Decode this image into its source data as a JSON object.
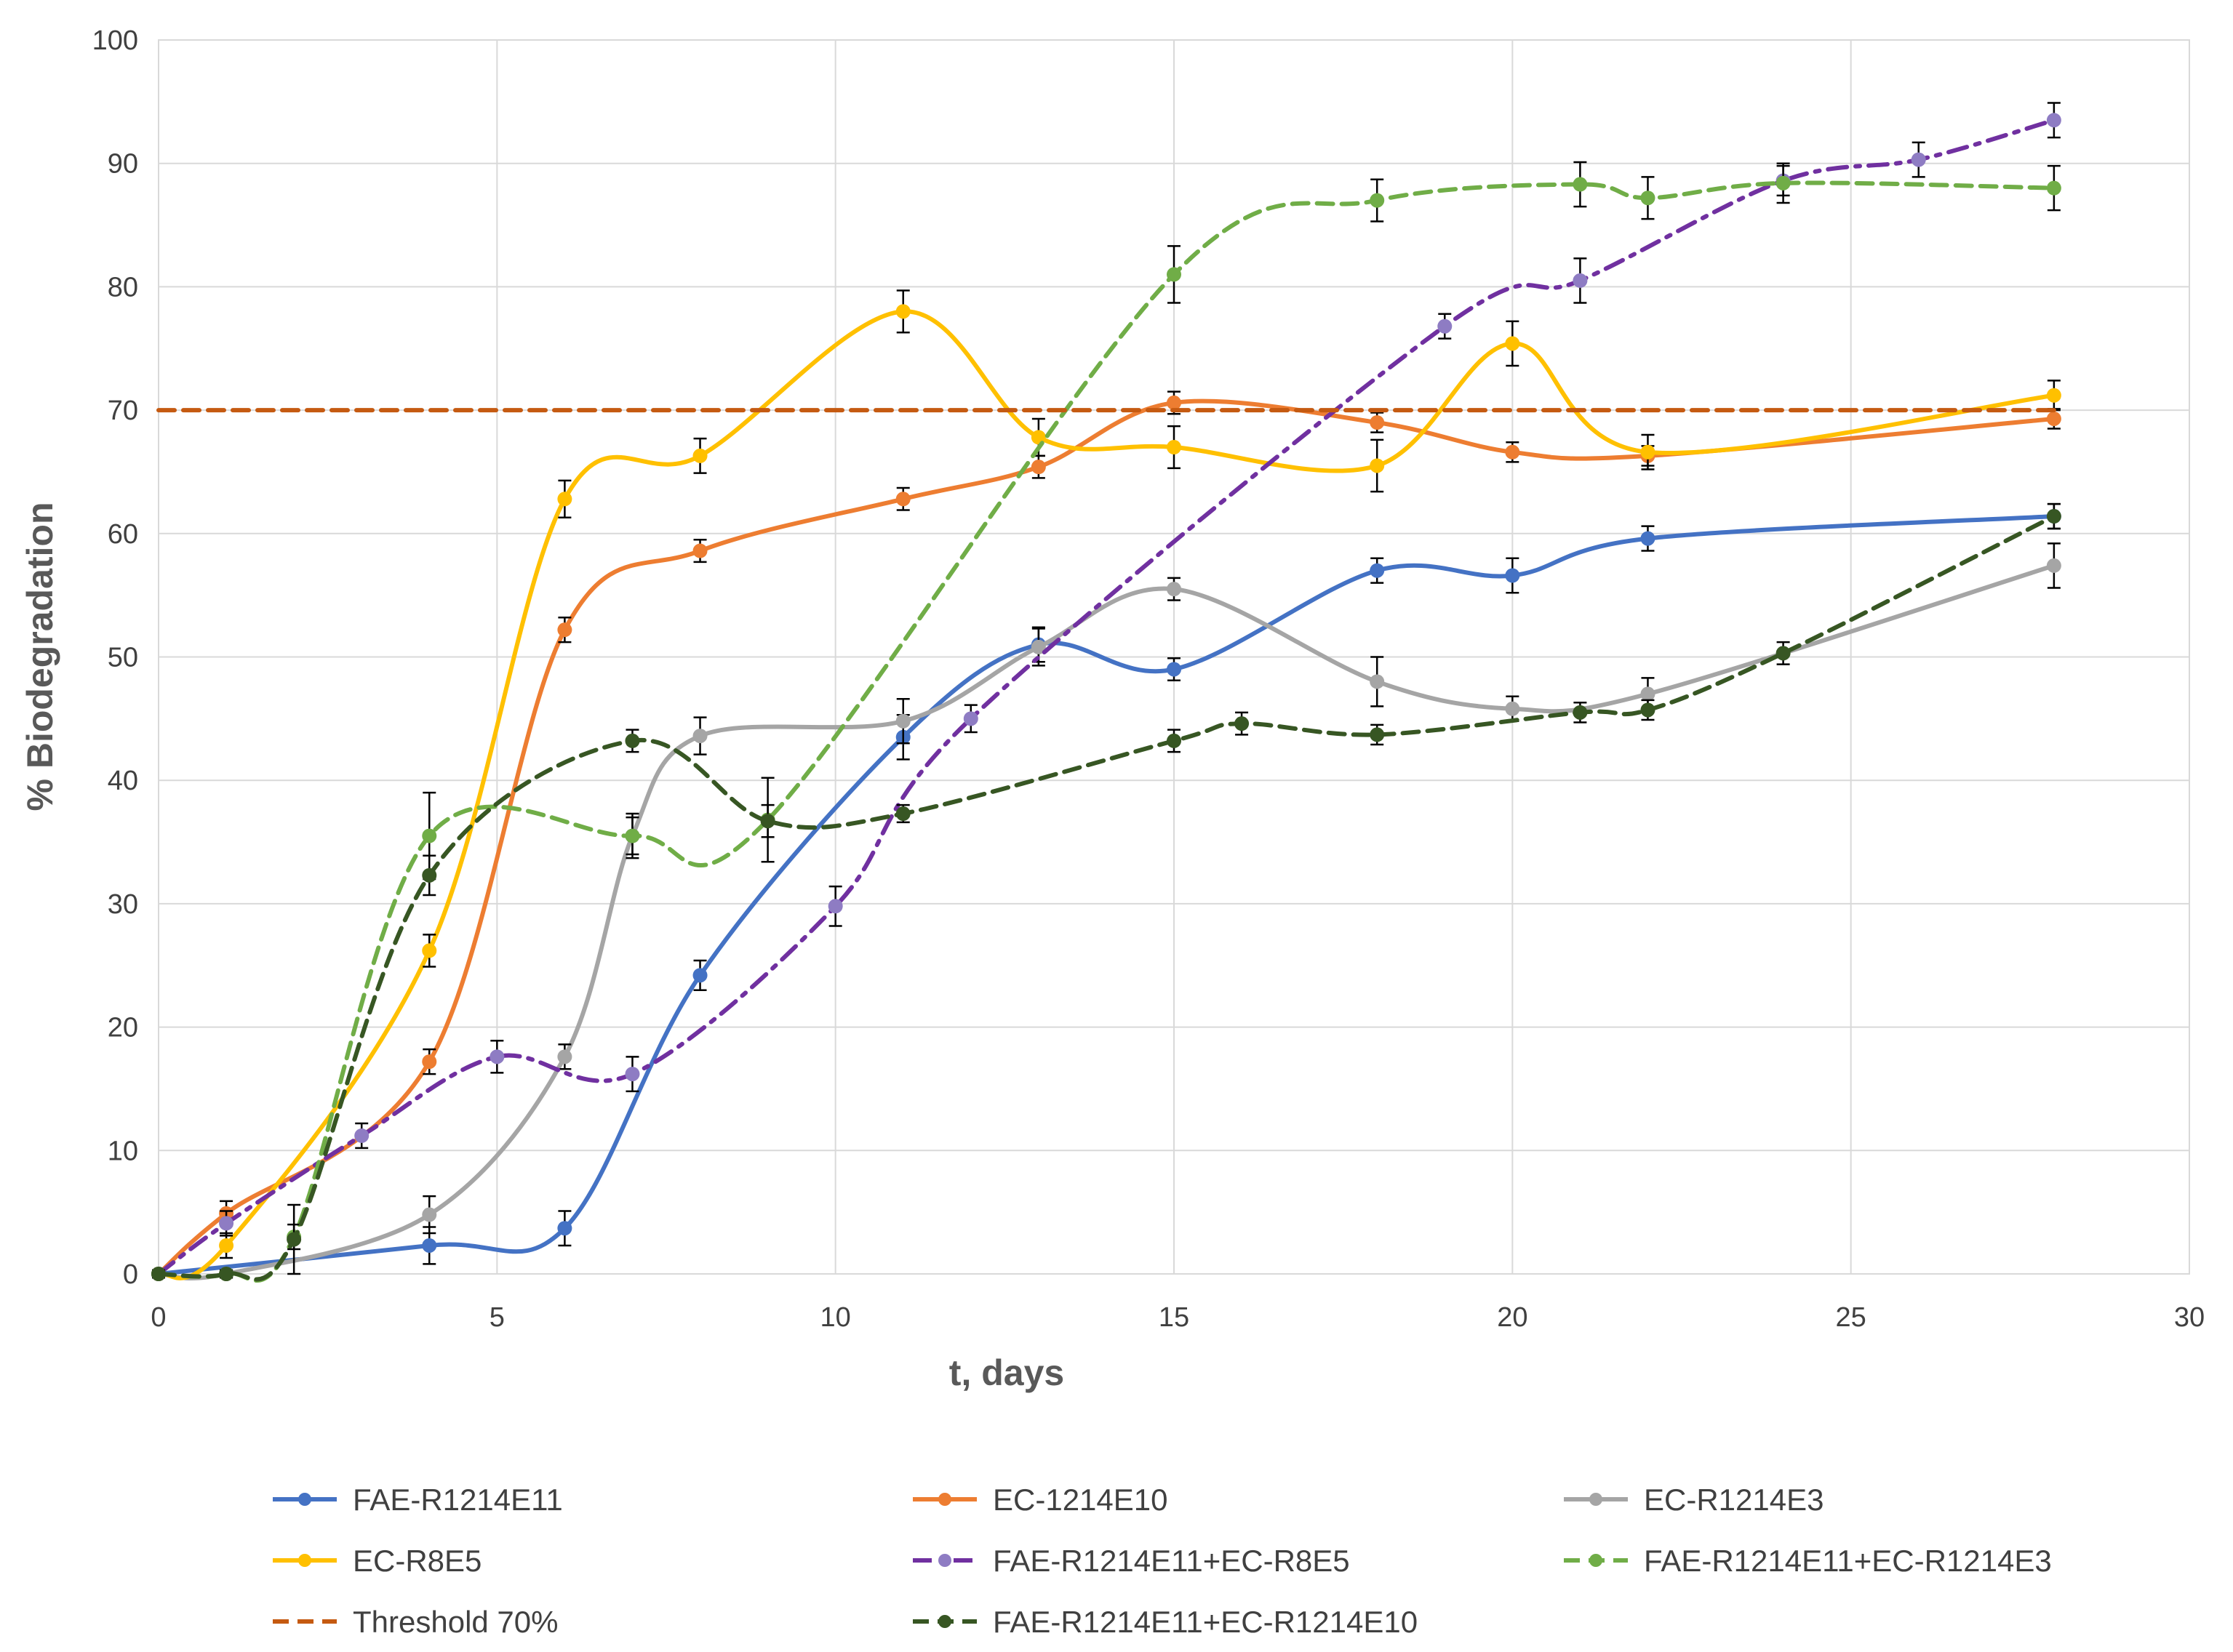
{
  "chart_data": {
    "type": "line",
    "title": "",
    "xlabel": "t, days",
    "ylabel": "% Biodegradation",
    "xlim": [
      0,
      30
    ],
    "ylim": [
      0,
      100
    ],
    "xticks": [
      "0",
      "5",
      "10",
      "15",
      "20",
      "25",
      "30"
    ],
    "yticks": [
      "0",
      "10",
      "20",
      "30",
      "40",
      "50",
      "60",
      "70",
      "80",
      "90",
      "100"
    ],
    "grid": true,
    "legend_position": "bottom",
    "series": [
      {
        "name": "FAE-R1214E11",
        "color": "#4472c4",
        "dash": "solid",
        "x": [
          0,
          4,
          6,
          8,
          11,
          13,
          15,
          18,
          20,
          22,
          28
        ],
        "y": [
          0,
          2.3,
          3.7,
          24.2,
          43.5,
          51,
          49,
          57,
          56.6,
          59.6,
          61.4
        ],
        "err": [
          0.3,
          1.5,
          1.4,
          1.2,
          1.8,
          1.4,
          0.9,
          1.0,
          1.4,
          1.0,
          1.0
        ]
      },
      {
        "name": "EC-1214E10",
        "color": "#ed7d31",
        "dash": "solid",
        "x": [
          0,
          1,
          4,
          6,
          8,
          11,
          13,
          15,
          18,
          20,
          22,
          28
        ],
        "y": [
          0,
          4.9,
          17.2,
          52.2,
          58.6,
          62.8,
          65.4,
          70.6,
          69,
          66.6,
          66.3,
          69.3
        ],
        "err": [
          0.3,
          1.0,
          1.0,
          1.0,
          0.9,
          0.9,
          0.9,
          0.9,
          0.8,
          0.8,
          0.8,
          0.8
        ]
      },
      {
        "name": "EC-R1214E3",
        "color": "#a5a5a5",
        "dash": "solid",
        "x": [
          0,
          1,
          4,
          6,
          7,
          8,
          11,
          13,
          15,
          18,
          20,
          22,
          28
        ],
        "y": [
          0,
          0,
          4.8,
          17.6,
          35.5,
          43.6,
          44.8,
          50.8,
          55.5,
          48,
          45.8,
          47,
          57.4
        ],
        "err": [
          0.3,
          0.3,
          1.5,
          1.0,
          1.5,
          1.5,
          1.8,
          1.5,
          0.9,
          2.0,
          1.0,
          1.3,
          1.8
        ]
      },
      {
        "name": "EC-R8E5",
        "color": "#ffc000",
        "dash": "solid",
        "x": [
          0,
          1,
          4,
          6,
          8,
          11,
          13,
          15,
          18,
          20,
          22,
          28
        ],
        "y": [
          0,
          2.3,
          26.2,
          62.8,
          66.3,
          78,
          67.8,
          67,
          65.5,
          75.4,
          66.6,
          71.2
        ],
        "err": [
          0.3,
          1.0,
          1.3,
          1.5,
          1.4,
          1.7,
          1.5,
          1.7,
          2.1,
          1.8,
          1.4,
          1.2
        ]
      },
      {
        "name": "FAE-R1214E11+EC-R8E5",
        "color": "#7030a0",
        "marker_color": "#8e7cc3",
        "dash": "dashdot",
        "x": [
          0,
          1,
          3,
          5,
          7,
          10,
          12,
          19,
          21,
          24,
          26,
          28
        ],
        "y": [
          0,
          4.1,
          11.2,
          17.6,
          16.2,
          29.8,
          45,
          76.8,
          80.5,
          88.6,
          90.3,
          93.5
        ],
        "err": [
          0.3,
          1.0,
          1.0,
          1.3,
          1.4,
          1.6,
          1.1,
          1.0,
          1.8,
          1.2,
          1.4,
          1.4
        ]
      },
      {
        "name": "FAE-R1214E11+EC-R1214E3",
        "color": "#70ad47",
        "dash": "dash",
        "x": [
          0,
          1,
          2,
          4,
          7,
          9,
          15,
          18,
          21,
          22,
          24,
          28
        ],
        "y": [
          0,
          0,
          3,
          35.5,
          35.5,
          36.8,
          81,
          87,
          88.3,
          87.2,
          88.4,
          88
        ],
        "err": [
          0.3,
          0.3,
          1.0,
          3.5,
          1.8,
          3.4,
          2.3,
          1.7,
          1.8,
          1.7,
          1.6,
          1.8
        ]
      },
      {
        "name": "Threshold 70%",
        "color": "#c55a11",
        "dash": "dash",
        "x": [
          0,
          28
        ],
        "y": [
          70,
          70
        ],
        "err": [],
        "no_markers": true
      },
      {
        "name": "FAE-R1214E11+EC-R1214E10",
        "color": "#375623",
        "dash": "dash",
        "x": [
          0,
          1,
          2,
          4,
          7,
          9,
          11,
          15,
          16,
          18,
          21,
          22,
          24,
          28
        ],
        "y": [
          0,
          0,
          2.8,
          32.3,
          43.2,
          36.7,
          37.3,
          43.2,
          44.6,
          43.7,
          45.5,
          45.7,
          50.3,
          61.4
        ],
        "err": [
          0.3,
          0.3,
          2.8,
          1.6,
          0.9,
          1.3,
          0.7,
          0.9,
          0.9,
          0.8,
          0.8,
          0.8,
          0.9,
          1.0
        ]
      }
    ]
  }
}
